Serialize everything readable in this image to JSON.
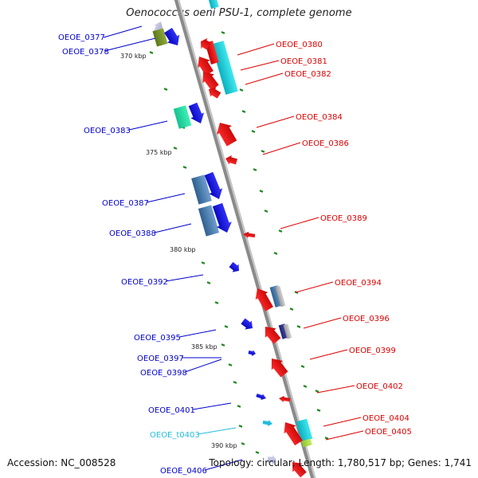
{
  "title": "Oenococcus oeni PSU-1, complete genome",
  "footer": {
    "accession": "Accession: NC_008528",
    "topology": "Topology: circular; Length: 1,780,517 bp; Genes: 1,741"
  },
  "colors": {
    "forward_label": "#0000cc",
    "reverse_label": "#dd0000",
    "trna_label": "#22bbdd",
    "backbone": "#8a8a8a",
    "tick": "#228822",
    "forward_gene": "#0000ee",
    "reverse_gene": "#ee0000"
  },
  "kbp_markers": [
    "370 kbp",
    "375 kbp",
    "380 kbp",
    "385 kbp",
    "390 kbp"
  ],
  "gene_labels": {
    "forward": [
      "OEOE_0377",
      "OEOE_0378",
      "OEOE_0383",
      "OEOE_0387",
      "OEOE_0388",
      "OEOE_0392",
      "OEOE_0395",
      "OEOE_0397",
      "OEOE_0398",
      "OEOE_0401",
      "OEOE_0406"
    ],
    "trna": [
      "OEOE_t0403"
    ],
    "reverse": [
      "OEOE_0380",
      "OEOE_0381",
      "OEOE_0382",
      "OEOE_0384",
      "OEOE_0386",
      "OEOE_0389",
      "OEOE_0394",
      "OEOE_0396",
      "OEOE_0399",
      "OEOE_0402",
      "OEOE_0404",
      "OEOE_0405"
    ]
  }
}
